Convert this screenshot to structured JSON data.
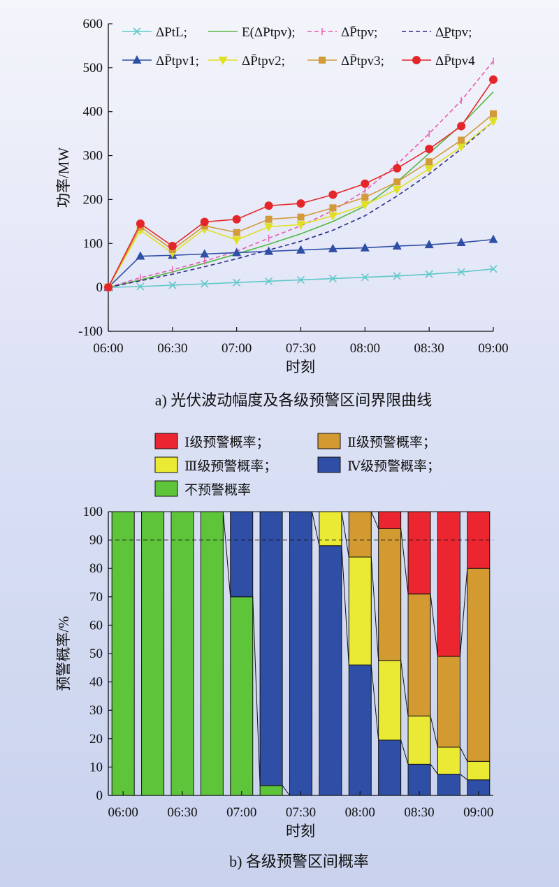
{
  "chart_data": [
    {
      "type": "line",
      "title": "",
      "caption": "a) 光伏波动幅度及各级预警区间界限曲线",
      "xlabel": "时刻",
      "ylabel": "功率/MW",
      "ylim": [
        -100,
        600
      ],
      "yticks": [
        -100,
        0,
        100,
        200,
        300,
        400,
        500,
        600
      ],
      "xticks": [
        "06:00",
        "06:30",
        "07:00",
        "07:30",
        "08:00",
        "08:30",
        "09:00"
      ],
      "x": [
        "06:00",
        "06:15",
        "06:30",
        "06:45",
        "07:00",
        "07:15",
        "07:30",
        "07:45",
        "08:00",
        "08:15",
        "08:30",
        "08:45",
        "09:00"
      ],
      "grid": false,
      "legend_position": "top",
      "series": [
        {
          "name": "ΔPtL;",
          "color": "#5fc8c8",
          "dash": "solid",
          "marker": "x",
          "values": [
            0,
            2,
            5,
            8,
            11,
            14,
            17,
            20,
            23,
            26,
            30,
            35,
            42
          ]
        },
        {
          "name": "E(ΔPtpv);",
          "color": "#55b840",
          "dash": "solid",
          "marker": "none",
          "values": [
            0,
            17,
            35,
            55,
            76,
            98,
            122,
            150,
            185,
            240,
            305,
            370,
            445
          ]
        },
        {
          "name": "ΔP̄tpv;",
          "color": "#e85ab0",
          "dash": "dash",
          "marker": "plus",
          "values": [
            0,
            22,
            40,
            60,
            82,
            112,
            140,
            175,
            220,
            280,
            350,
            425,
            515
          ]
        },
        {
          "name": "ΔP̲tpv;",
          "color": "#2c2a8c",
          "dash": "dash",
          "marker": "none",
          "values": [
            0,
            15,
            30,
            47,
            65,
            85,
            105,
            130,
            163,
            208,
            258,
            315,
            378
          ]
        },
        {
          "name": "ΔP̄tpv1;",
          "color": "#2f4fa6",
          "dash": "solid",
          "marker": "triangle",
          "values": [
            0,
            71,
            73,
            76,
            79,
            82,
            85,
            88,
            90,
            94,
            97,
            102,
            109
          ]
        },
        {
          "name": "ΔP̄tpv2;",
          "color": "#e0e020",
          "dash": "solid",
          "marker": "triangle-down",
          "values": [
            0,
            130,
            78,
            133,
            108,
            138,
            143,
            163,
            188,
            223,
            270,
            320,
            378
          ]
        },
        {
          "name": "ΔP̄tpv3;",
          "color": "#d39a3a",
          "dash": "solid",
          "marker": "square",
          "values": [
            0,
            138,
            86,
            140,
            125,
            155,
            160,
            181,
            205,
            240,
            286,
            335,
            395
          ]
        },
        {
          "name": "ΔP̄tpv4",
          "color": "#e4262a",
          "dash": "solid",
          "marker": "circle",
          "values": [
            0,
            145,
            94,
            149,
            155,
            186,
            191,
            211,
            236,
            271,
            315,
            367,
            473
          ]
        }
      ]
    },
    {
      "type": "bar",
      "stacked": true,
      "title": "",
      "caption": "b) 各级预警区间概率",
      "xlabel": "时刻",
      "ylabel": "预警概率/%",
      "ylim": [
        0,
        100
      ],
      "yticks": [
        0,
        10,
        20,
        30,
        40,
        50,
        60,
        70,
        80,
        90,
        100
      ],
      "xticks": [
        "06:00",
        "06:30",
        "07:00",
        "07:30",
        "08:00",
        "08:30",
        "09:00"
      ],
      "threshold": 90,
      "categories": [
        "06:00",
        "06:15",
        "06:30",
        "06:45",
        "07:00",
        "07:15",
        "07:30",
        "07:45",
        "08:00",
        "08:15",
        "08:30",
        "08:45",
        "09:00"
      ],
      "legend_position": "top",
      "series": [
        {
          "name": "不预警概率",
          "color": "#5ec43a",
          "values": [
            100,
            100,
            100,
            100,
            70,
            3.5,
            0,
            0,
            0,
            0,
            0,
            0,
            0
          ]
        },
        {
          "name": "Ⅳ级预警概率；",
          "color": "#2f4fa6",
          "values": [
            0,
            0,
            0,
            0,
            30,
            96.5,
            100,
            88,
            46,
            19.5,
            11,
            7.5,
            5.5
          ]
        },
        {
          "name": "Ⅲ级预警概率；",
          "color": "#eaea35",
          "values": [
            0,
            0,
            0,
            0,
            0,
            0,
            0,
            12,
            38,
            28,
            17,
            9.5,
            6.5
          ]
        },
        {
          "name": "Ⅱ级预警概率；",
          "color": "#d39a32",
          "values": [
            0,
            0,
            0,
            0,
            0,
            0,
            0,
            0,
            16,
            46.5,
            43,
            32,
            68
          ]
        },
        {
          "name": "Ⅰ级预警概率；",
          "color": "#ec2630",
          "values": [
            0,
            0,
            0,
            0,
            0,
            0,
            0,
            0,
            0,
            6,
            29,
            51,
            20
          ]
        }
      ]
    }
  ]
}
